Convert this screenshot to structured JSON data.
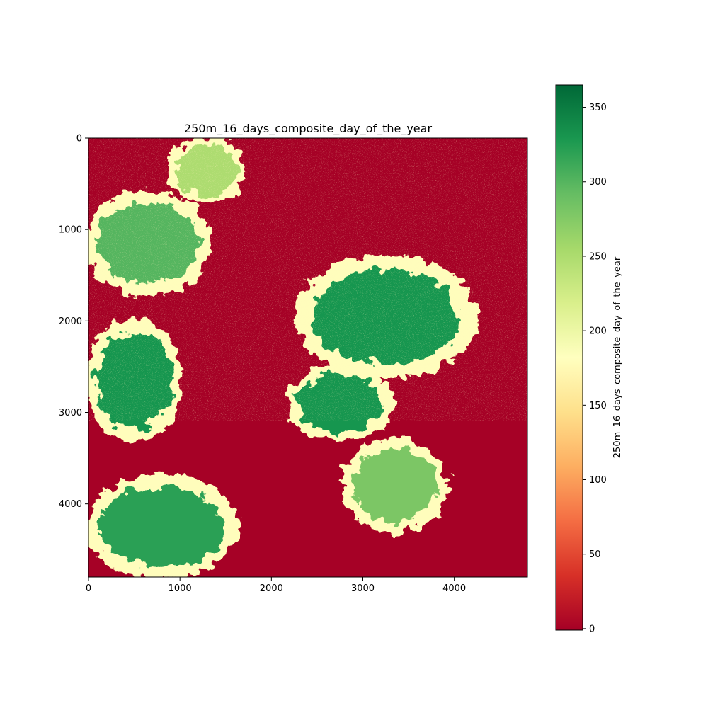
{
  "chart_data": {
    "type": "heatmap",
    "title": "250m_16_days_composite_day_of_the_year",
    "xlabel": "",
    "ylabel": "",
    "xlim": [
      0,
      4800
    ],
    "ylim": [
      4800,
      0
    ],
    "x_ticks": [
      0,
      1000,
      2000,
      3000,
      4000
    ],
    "y_ticks": [
      0,
      1000,
      2000,
      3000,
      4000
    ],
    "colorbar": {
      "label": "250m_16_days_composite_day_of_the_year",
      "range": [
        -1,
        365
      ],
      "ticks": [
        0,
        50,
        100,
        150,
        200,
        250,
        300,
        350
      ],
      "colormap": "RdYlGn",
      "stops": [
        "#a50026",
        "#d73027",
        "#f46d43",
        "#fdae61",
        "#fee08b",
        "#ffffbf",
        "#d9ef8b",
        "#a6d96a",
        "#66bd63",
        "#1a9850",
        "#006837"
      ]
    },
    "grid": false,
    "dominant_value": 0,
    "high_value_regions": [
      {
        "x_range": [
          2300,
          4200
        ],
        "y_range": [
          1300,
          2600
        ],
        "value": 330
      },
      {
        "x_range": [
          0,
          1000
        ],
        "y_range": [
          2000,
          3300
        ],
        "value": 330
      },
      {
        "x_range": [
          2200,
          3300
        ],
        "y_range": [
          2500,
          3300
        ],
        "value": 330
      },
      {
        "x_range": [
          2800,
          3900
        ],
        "y_range": [
          3300,
          4300
        ],
        "value": 280
      },
      {
        "x_range": [
          0,
          1600
        ],
        "y_range": [
          3700,
          4800
        ],
        "value": 320
      },
      {
        "x_range": [
          0,
          1300
        ],
        "y_range": [
          600,
          1700
        ],
        "value": 300
      },
      {
        "x_range": [
          900,
          1700
        ],
        "y_range": [
          0,
          700
        ],
        "value": 250
      }
    ]
  }
}
